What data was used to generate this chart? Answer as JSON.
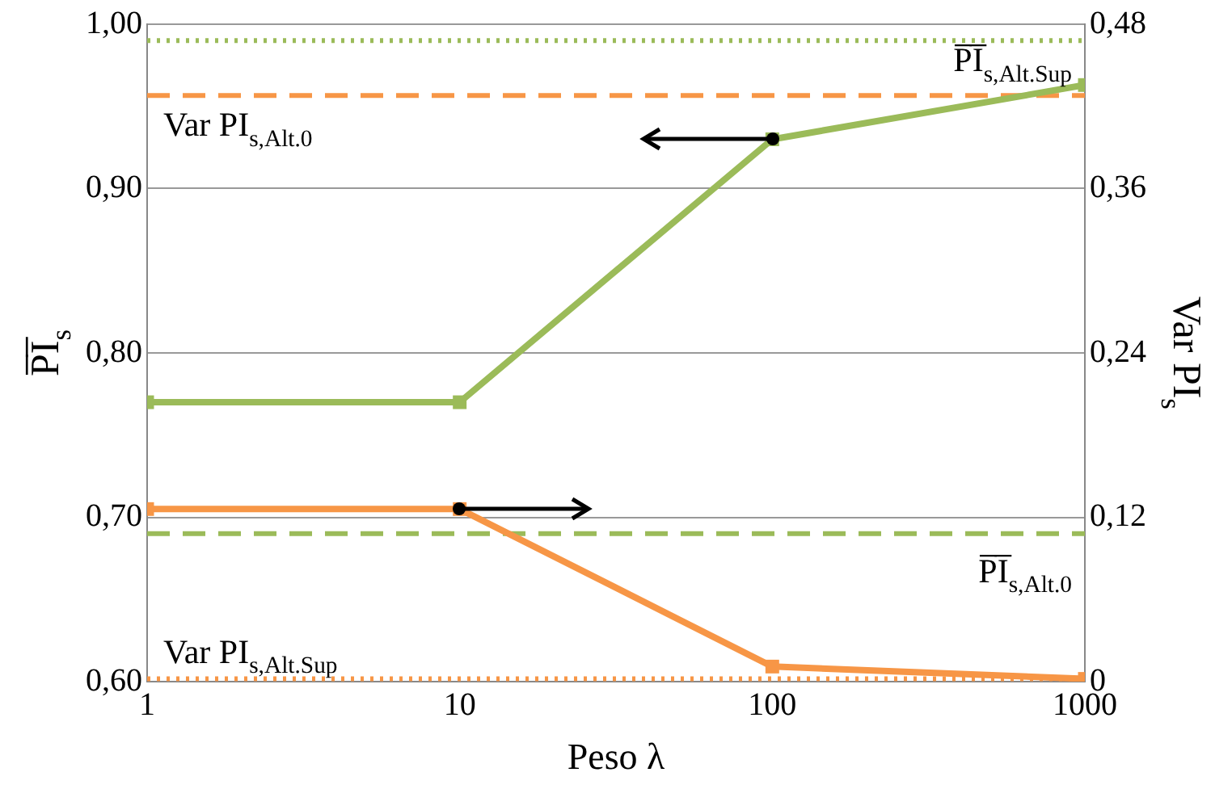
{
  "chart_data": {
    "type": "line",
    "xlabel": "Peso λ",
    "ylabel": "P̅I̅$_{s}$",
    "y2label": "Var PI$_{s}$",
    "x": [
      1,
      10,
      100,
      1000
    ],
    "series": [
      {
        "name": null,
        "color": "#9bbb59",
        "values": [
          0.77,
          0.77,
          0.93,
          0.963
        ]
      },
      {
        "name": null,
        "color": "#f79646",
        "values": [
          0.126,
          0.126,
          0.011,
          0.002
        ],
        "axis": "y2"
      }
    ],
    "log": "x",
    "xlim": [
      1,
      1000
    ],
    "xticks": [
      1,
      10,
      100,
      1000
    ],
    "ylim": [
      0.6,
      1.0
    ],
    "yticks": [
      {
        "value": 0.6,
        "label": "0,60"
      },
      {
        "value": 0.7,
        "label": "0,70"
      },
      {
        "value": 0.8,
        "label": "0,80"
      },
      {
        "value": 0.9,
        "label": "0,90"
      },
      {
        "value": 1.0,
        "label": "1,00"
      }
    ],
    "y2lim": [
      0,
      0.48
    ],
    "y2ticks": [
      0,
      {
        "value": 0.12,
        "label": "0,12"
      },
      {
        "value": 0.24,
        "label": "0,24"
      },
      {
        "value": 0.36,
        "label": "0,36"
      },
      {
        "value": 0.48,
        "label": "0,48"
      }
    ],
    "ref_lines": [
      {
        "axis": "y",
        "value": 0.99,
        "label": "P̅I̅$_{s,Alt.Sup}$",
        "color": "#9bbb59",
        "line_style": "dotted"
      },
      {
        "axis": "y2",
        "value": 0.428,
        "label": "Var PI$_{s,Alt.0}$",
        "color": "#f79646",
        "line_style": "dashed"
      },
      {
        "axis": "y",
        "value": 0.69,
        "label": "P̅I̅$_{s,Alt.0}$",
        "color": "#9bbb59",
        "line_style": "dashed"
      },
      {
        "axis": "y2",
        "value": 0.002,
        "label": "Var PI$_{s,Alt.Sup}$",
        "color": "#f79646",
        "line_style": "dotted"
      }
    ],
    "grid": "y",
    "marker": "square",
    "line_style": "solid",
    "legend": false
  }
}
